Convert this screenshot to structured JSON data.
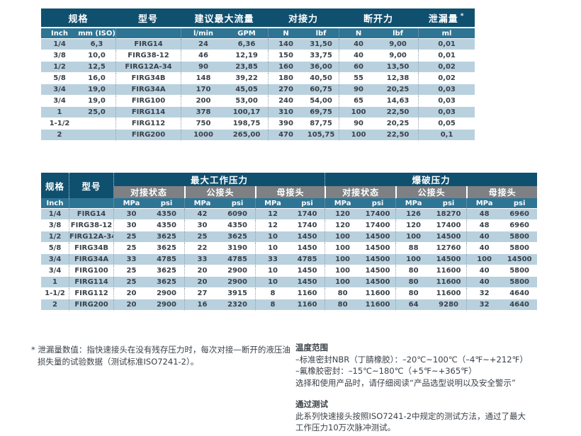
{
  "colors": {
    "header_dark": "#10506F",
    "header_gray": "#7F8083",
    "header_unit_blue": "#2E7494",
    "row_light_blue": "#B9D1DF",
    "text": "#3A4148"
  },
  "table1": {
    "h_spec": "规格",
    "h_model": "型号",
    "h_flow": "建议最大流量",
    "h_connect_force": "对接力",
    "h_disconnect_force": "断开力",
    "h_leak": "泄漏量",
    "h_leak_mark": "*",
    "units": [
      "Inch",
      "mm (ISO)",
      "",
      "l/min",
      "GPM",
      "N",
      "lbf",
      "N",
      "lbf",
      "ml"
    ],
    "rows": [
      [
        "1/4",
        "6,3",
        "FIRG14",
        "24",
        "6,36",
        "140",
        "31,50",
        "40",
        "9,00",
        "0,01"
      ],
      [
        "3/8",
        "10,0",
        "FIRG38-12",
        "46",
        "12,19",
        "150",
        "33,75",
        "40",
        "9,00",
        "0,01"
      ],
      [
        "1/2",
        "12,5",
        "FIRG12A-34",
        "90",
        "23,85",
        "160",
        "36,00",
        "60",
        "13,50",
        "0,02"
      ],
      [
        "5/8",
        "16,0",
        "FIRG34B",
        "148",
        "39,22",
        "180",
        "40,50",
        "55",
        "12,38",
        "0,02"
      ],
      [
        "3/4",
        "19,0",
        "FIRG34A",
        "170",
        "45,05",
        "270",
        "60,75",
        "90",
        "20,25",
        "0,03"
      ],
      [
        "3/4",
        "19,0",
        "FIRG100",
        "200",
        "53,00",
        "240",
        "54,00",
        "65",
        "14,63",
        "0,03"
      ],
      [
        "1",
        "25,0",
        "FIRG114",
        "378",
        "100,17",
        "310",
        "69,75",
        "100",
        "22,50",
        "0,03"
      ],
      [
        "1-1/2",
        "",
        "FIRG112",
        "750",
        "198,75",
        "390",
        "87,75",
        "90",
        "20,25",
        "0,05"
      ],
      [
        "2",
        "",
        "FIRG200",
        "1000",
        "265,00",
        "470",
        "105,75",
        "100",
        "22,50",
        "0,1"
      ]
    ]
  },
  "table2": {
    "h_spec": "规格",
    "h_model": "型号",
    "h_max_working_pressure": "最大工作压力",
    "h_burst_pressure": "爆破压力",
    "sub": [
      "对接状态",
      "公接头",
      "母接头",
      "对接状态",
      "公接头",
      "母接头"
    ],
    "units": [
      "Inch",
      "",
      "MPa",
      "psi",
      "MPa",
      "psi",
      "MPa",
      "psi",
      "MPa",
      "psi",
      "MPa",
      "psi",
      "MPa",
      "psi"
    ],
    "rows": [
      [
        "1/4",
        "FIRG14",
        "30",
        "4350",
        "42",
        "6090",
        "12",
        "1740",
        "120",
        "17400",
        "126",
        "18270",
        "48",
        "6960"
      ],
      [
        "3/8",
        "FIRG38-12",
        "30",
        "4350",
        "30",
        "4350",
        "12",
        "1740",
        "120",
        "17400",
        "120",
        "17400",
        "48",
        "6960"
      ],
      [
        "1/2",
        "FIRG12A-34",
        "25",
        "3625",
        "25",
        "3625",
        "10",
        "1450",
        "100",
        "14500",
        "100",
        "14500",
        "40",
        "5800"
      ],
      [
        "5/8",
        "FIRG34B",
        "25",
        "3625",
        "22",
        "3190",
        "10",
        "1450",
        "100",
        "14500",
        "88",
        "12760",
        "40",
        "5800"
      ],
      [
        "3/4",
        "FIRG34A",
        "33",
        "4785",
        "33",
        "4785",
        "33",
        "4785",
        "100",
        "14500",
        "100",
        "14500",
        "100",
        "14500"
      ],
      [
        "3/4",
        "FIRG100",
        "25",
        "3625",
        "20",
        "2900",
        "10",
        "1450",
        "100",
        "14500",
        "80",
        "11600",
        "40",
        "5800"
      ],
      [
        "1",
        "FIRG114",
        "25",
        "3625",
        "20",
        "2900",
        "10",
        "1450",
        "100",
        "14500",
        "80",
        "11600",
        "40",
        "5800"
      ],
      [
        "1-1/2",
        "FIRG112",
        "20",
        "2900",
        "27",
        "3915",
        "8",
        "1160",
        "80",
        "11600",
        "80",
        "11600",
        "32",
        "4640"
      ],
      [
        "2",
        "FIRG200",
        "20",
        "2900",
        "16",
        "2320",
        "8",
        "1160",
        "80",
        "11600",
        "64",
        "9280",
        "32",
        "4640"
      ]
    ]
  },
  "notes": {
    "leakage_note": "* 泄漏量数值：指快速接头在没有残存压力时，每次对接—断开的液压油损失量的试验数据（测试标准ISO7241-2）。",
    "temperature_title": "温度范围",
    "temperature_line1": "–标准密封NBR（丁腈橡胶）：–20℃~100℃（–4℉~+212℉）",
    "temperature_line2": "–氟橡胶密封：–15℃~180℃（+5℉~+365℉）",
    "temperature_line3": "选择和使用产品时，请仔细阅读“产品选型说明以及安全警示”",
    "test_title": "通过测试",
    "test_body1": "此系列快速接头按照ISO7241-2中规定的测试方法，通过了最大",
    "test_body2": "工作压力10万次脉冲测试。"
  }
}
